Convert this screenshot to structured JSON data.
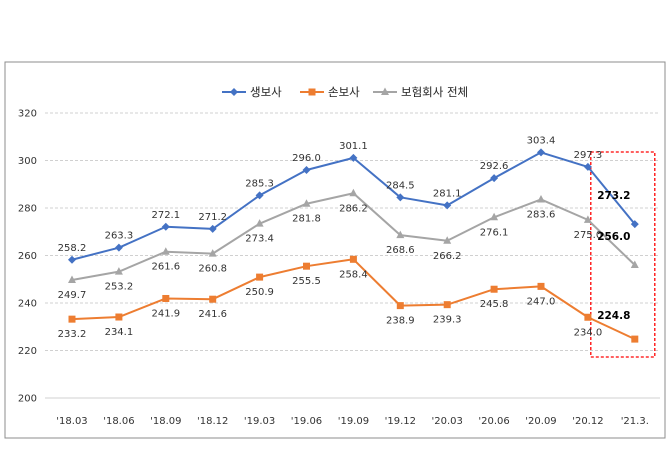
{
  "chart_data": {
    "type": "line",
    "categories": [
      "'18.03",
      "'18.06",
      "'18.09",
      "'18.12",
      "'19.03",
      "'19.06",
      "'19.09",
      "'19.12",
      "'20.03",
      "'20.06",
      "'20.09",
      "'20.12",
      "'21.3."
    ],
    "series": [
      {
        "name": "생보사",
        "color": "#4472C4",
        "marker": "diamond",
        "values": [
          258.2,
          263.3,
          272.1,
          271.2,
          285.3,
          296.0,
          301.1,
          284.5,
          281.1,
          292.6,
          303.4,
          297.3,
          273.2
        ],
        "labels": [
          "258.2",
          "263.3",
          "272.1",
          "271.2",
          "285.3",
          "296.0",
          "301.1",
          "284.5",
          "281.1",
          "292.6",
          "303.4",
          "297.3",
          "273.2"
        ]
      },
      {
        "name": "손보사",
        "color": "#ED7D31",
        "marker": "square",
        "values": [
          233.2,
          234.1,
          241.9,
          241.6,
          250.9,
          255.5,
          258.4,
          238.9,
          239.3,
          245.8,
          247.0,
          234.0,
          224.8
        ],
        "labels": [
          "233.2",
          "234.1",
          "241.9",
          "241.6",
          "250.9",
          "255.5",
          "258.4",
          "238.9",
          "239.3",
          "245.8",
          "247.0",
          "234.0",
          "224.8"
        ]
      },
      {
        "name": "보험회사 전체",
        "color": "#A5A5A5",
        "marker": "triangle",
        "values": [
          249.7,
          253.2,
          261.6,
          260.8,
          273.4,
          281.8,
          286.2,
          268.6,
          266.2,
          276.1,
          283.6,
          275.0,
          256.0
        ],
        "labels": [
          "249.7",
          "253.2",
          "261.6",
          "260.8",
          "273.4",
          "281.8",
          "286.2",
          "268.6",
          "266.2",
          "276.1",
          "283.6",
          "275.0",
          "256.0"
        ]
      }
    ],
    "ylim": [
      200,
      320
    ],
    "yticks": [
      "200",
      "220",
      "240",
      "260",
      "280",
      "300",
      "320"
    ],
    "grid": "horizontal dashed",
    "legend": "top-center",
    "highlight": "last category boxed with red dashed border",
    "highlight_color": "#FF0000"
  }
}
